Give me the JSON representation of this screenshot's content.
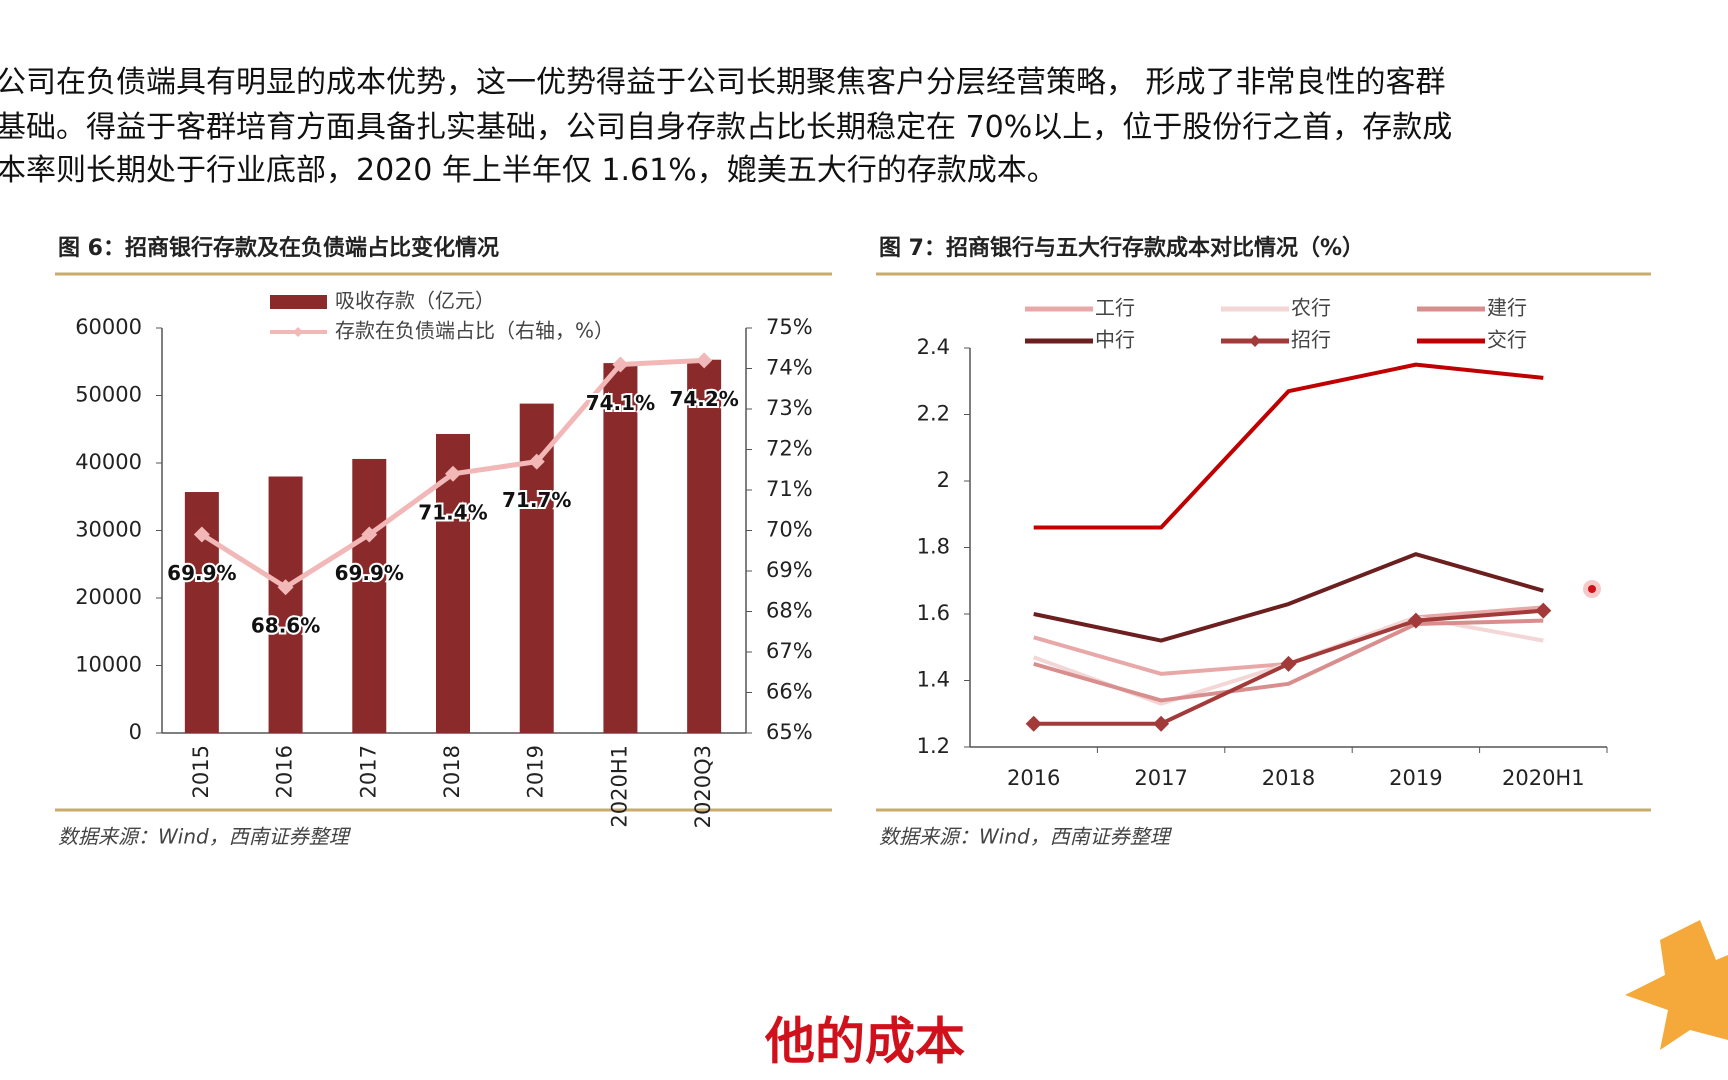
{
  "text": {
    "lines": [
      "公司在负债端具有明显的成本优势，这一优势得益于公司长期聚焦客户分层经营策略， 形成了非常良性的客群",
      "基础。得益于客群培育方面具备扎实基础，公司自身存款占比长期稳定在 70%以上，位于股份行之首，存款成",
      "本率则长期处于行业底部，2020 年上半年仅 1.61%，媲美五大行的存款成本。"
    ]
  },
  "caption": "他的成本",
  "chart_data": [
    {
      "type": "bar",
      "title": "图 6：招商银行存款及在负债端占比变化情况",
      "source": "数据来源：Wind，西南证券整理",
      "categories": [
        "2015",
        "2016",
        "2017",
        "2018",
        "2019",
        "2020H1",
        "2020Q3"
      ],
      "series": [
        {
          "name": "吸收存款（亿元）",
          "color": "#8b2a2a",
          "values": [
            35700,
            38000,
            40600,
            44300,
            48800,
            54800,
            55300
          ]
        },
        {
          "name": "存款在负债端占比（右轴，%）",
          "color": "#f2b8b8",
          "axis": "y2",
          "marker": "diamond",
          "values": [
            69.9,
            68.6,
            69.9,
            71.4,
            71.7,
            74.1,
            74.2
          ],
          "value_labels": [
            "69.9%",
            "68.6%",
            "69.9%",
            "71.4%",
            "71.7%",
            "74.1%",
            "74.2%"
          ]
        }
      ],
      "ylim": [
        0,
        60000
      ],
      "yticks": [
        0,
        10000,
        20000,
        30000,
        40000,
        50000,
        60000
      ],
      "y2lim": [
        65,
        75
      ],
      "y2ticks": [
        {
          "value": 65,
          "label": "65%"
        },
        {
          "value": 66,
          "label": "66%"
        },
        {
          "value": 67,
          "label": "67%"
        },
        {
          "value": 68,
          "label": "68%"
        },
        {
          "value": 69,
          "label": "69%"
        },
        {
          "value": 70,
          "label": "70%"
        },
        {
          "value": 71,
          "label": "71%"
        },
        {
          "value": 72,
          "label": "72%"
        },
        {
          "value": 73,
          "label": "73%"
        },
        {
          "value": 74,
          "label": "74%"
        },
        {
          "value": 75,
          "label": "75%"
        }
      ]
    },
    {
      "type": "line",
      "title": "图 7：招商银行与五大行存款成本对比情况（%）",
      "source": "数据来源：Wind，西南证券整理",
      "categories": [
        "2016",
        "2017",
        "2018",
        "2019",
        "2020H1"
      ],
      "series": [
        {
          "name": "工行",
          "color": "#e8a8a8",
          "values": [
            1.53,
            1.42,
            1.45,
            1.59,
            1.62
          ]
        },
        {
          "name": "农行",
          "color": "#f3d6d6",
          "values": [
            1.47,
            1.33,
            1.45,
            1.59,
            1.52
          ]
        },
        {
          "name": "建行",
          "color": "#d98e8e",
          "values": [
            1.45,
            1.34,
            1.39,
            1.57,
            1.58
          ]
        },
        {
          "name": "中行",
          "color": "#6b1f1f",
          "values": [
            1.6,
            1.52,
            1.63,
            1.78,
            1.67
          ]
        },
        {
          "name": "招行",
          "color": "#a33a3a",
          "marker": "diamond",
          "values": [
            1.27,
            1.27,
            1.45,
            1.58,
            1.61
          ]
        },
        {
          "name": "交行",
          "color": "#c00000",
          "values": [
            1.86,
            1.86,
            2.27,
            2.35,
            2.31
          ]
        }
      ],
      "ylim": [
        1.2,
        2.4
      ],
      "yticks": [
        1.2,
        1.4,
        1.6,
        1.8,
        2,
        2.2,
        2.4
      ]
    }
  ]
}
